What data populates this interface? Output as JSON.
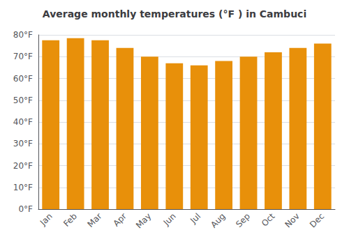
{
  "chart_data": {
    "type": "bar",
    "title": "Average monthly temperatures (°F ) in Cambuci",
    "categories": [
      "Jan",
      "Feb",
      "Mar",
      "Apr",
      "May",
      "Jun",
      "Jul",
      "Aug",
      "Sep",
      "Oct",
      "Nov",
      "Dec"
    ],
    "values": [
      77.5,
      78.5,
      77.5,
      74,
      70,
      67,
      66,
      68,
      70,
      72,
      74,
      76
    ],
    "color": "#E8900A",
    "ylim": [
      0,
      80
    ],
    "yticks": [
      {
        "value": 0,
        "label": "0°F"
      },
      {
        "value": 10,
        "label": "10°F"
      },
      {
        "value": 20,
        "label": "20°F"
      },
      {
        "value": 30,
        "label": "30°F"
      },
      {
        "value": 40,
        "label": "40°F"
      },
      {
        "value": 50,
        "label": "50°F"
      },
      {
        "value": 60,
        "label": "60°F"
      },
      {
        "value": 70,
        "label": "70°F"
      },
      {
        "value": 80,
        "label": "80°F"
      }
    ],
    "grid": true
  }
}
